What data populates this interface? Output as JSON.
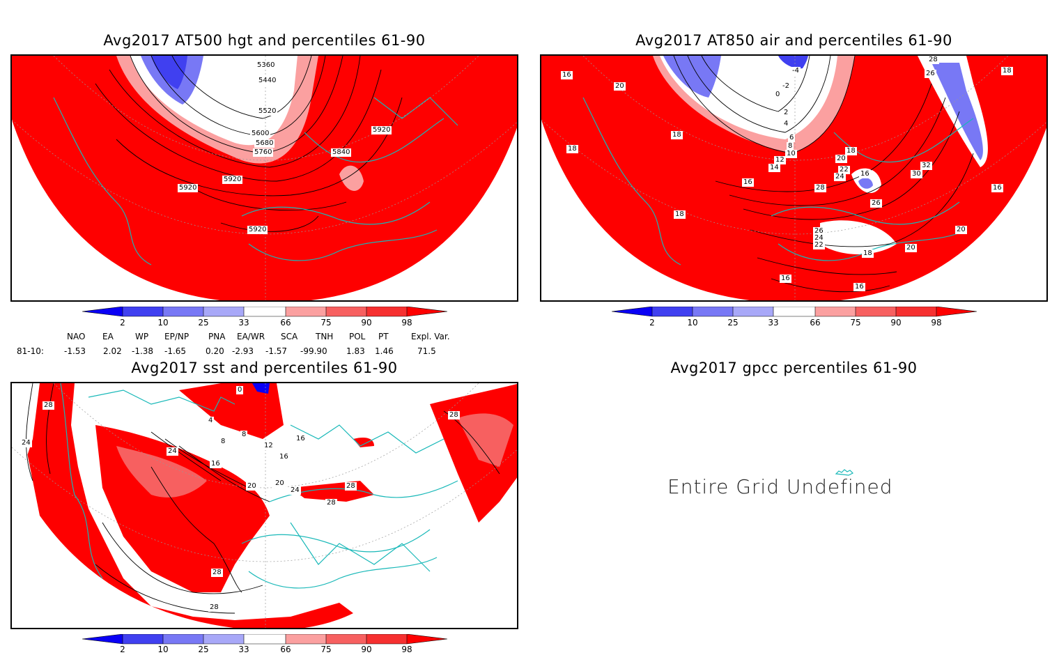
{
  "panels": {
    "hgt": {
      "title": "Avg2017 AT500 hgt and percentiles 61-90",
      "contour_labels": [
        "5360",
        "5440",
        "5520",
        "5600",
        "5680",
        "5760",
        "5840",
        "5920",
        "5920",
        "5920",
        "5920"
      ]
    },
    "air": {
      "title": "Avg2017 AT850 air and percentiles 61-90",
      "contour_labels": [
        "16",
        "20",
        "18",
        "18",
        "16",
        "18",
        "-4",
        "-2",
        "0",
        "2",
        "4",
        "6",
        "8",
        "10",
        "12",
        "14",
        "18",
        "20",
        "22",
        "24",
        "28",
        "16",
        "26",
        "32",
        "30",
        "26",
        "24",
        "22",
        "18",
        "16",
        "16",
        "20",
        "20",
        "28",
        "26",
        "18",
        "16"
      ]
    },
    "sst": {
      "title": "Avg2017 sst and percentiles 61-90",
      "contour_labels": [
        "28",
        "24",
        "0",
        "4",
        "8",
        "8",
        "12",
        "16",
        "16",
        "16",
        "20",
        "20",
        "24",
        "24",
        "28",
        "28",
        "28",
        "28",
        "28"
      ]
    },
    "gpcc": {
      "title": "Avg2017 gpcc percentiles 61-90",
      "message": "Entire Grid Undefined"
    }
  },
  "colorbar": {
    "labels": [
      "2",
      "10",
      "25",
      "33",
      "66",
      "75",
      "90",
      "98"
    ],
    "colors": {
      "blue_dark": "#0a00f5",
      "blue_mid": "#4040f0",
      "blue_light": "#7878f5",
      "blue_pale": "#a8a8f8",
      "white": "#ffffff",
      "red_pale": "#fba0a0",
      "red_light": "#f76060",
      "red_mid": "#f63030",
      "red_dark": "#fe0000"
    }
  },
  "indices": {
    "headers": [
      "NAO",
      "EA",
      "WP",
      "EP/NP",
      "PNA",
      "EA/WR",
      "SCA",
      "TNH",
      "POL",
      "PT",
      "Expl. Var."
    ],
    "row_label": "81-10:",
    "values": [
      "-1.53",
      "2.02",
      "-1.38",
      "-1.65",
      "0.20",
      "-2.93",
      "-1.57",
      "-99.90",
      "1.83",
      "1.46",
      "71.5"
    ]
  },
  "map_colors": {
    "coast": "#18b8b8",
    "field_red": "#fe0000",
    "contour": "#000000",
    "grid": "#999999"
  }
}
